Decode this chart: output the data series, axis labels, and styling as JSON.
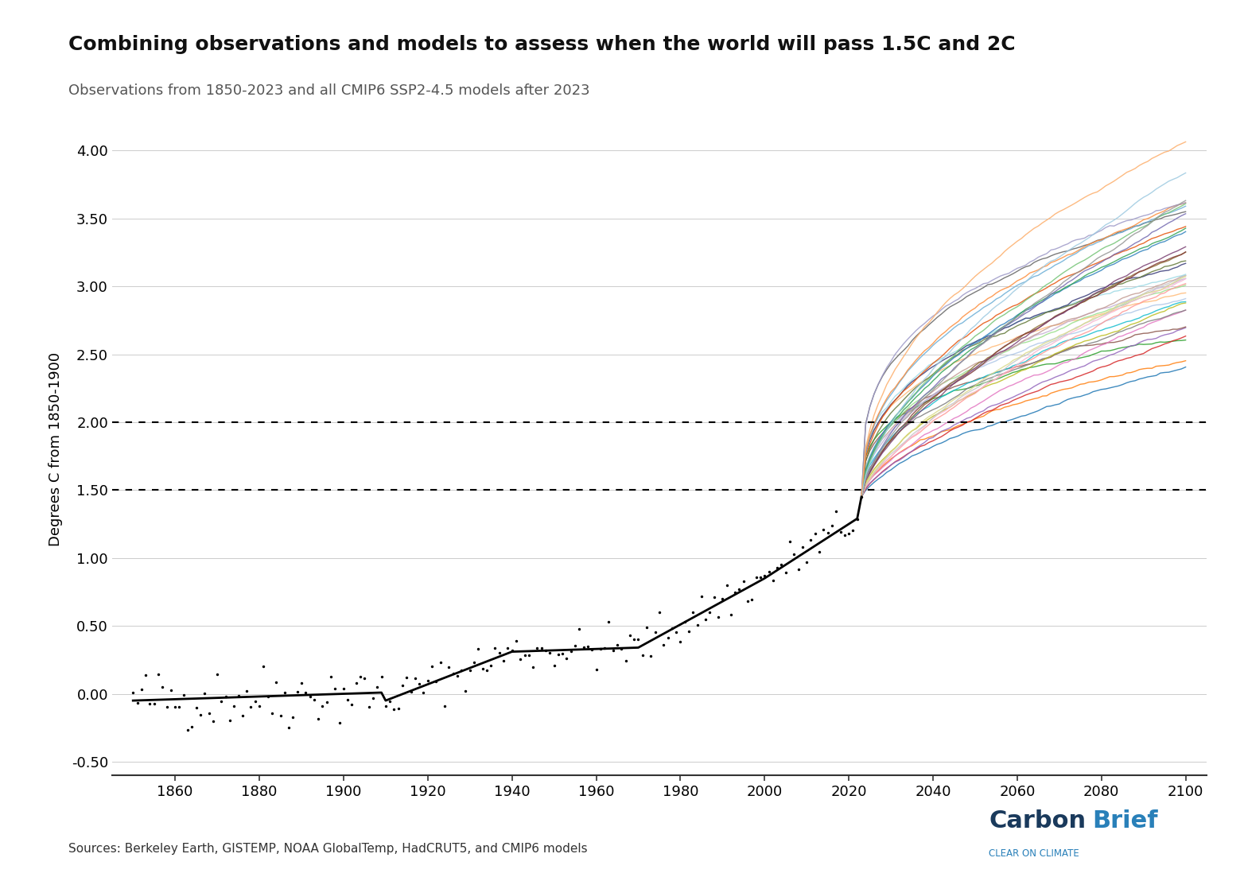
{
  "title": "Combining observations and models to assess when the world will pass 1.5C and 2C",
  "subtitle": "Observations from 1850-2023 and all CMIP6 SSP2-4.5 models after 2023",
  "ylabel": "Degrees C from 1850-1900",
  "sources": "Sources: Berkeley Earth, GISTEMP, NOAA GlobalTemp, HadCRUT5, and CMIP6 models",
  "threshold_1p5": 1.5,
  "threshold_2p0": 2.0,
  "xlim": [
    1845,
    2105
  ],
  "ylim": [
    -0.6,
    4.2
  ],
  "yticks": [
    -0.5,
    0.0,
    0.5,
    1.0,
    1.5,
    2.0,
    2.5,
    3.0,
    3.5,
    4.0
  ],
  "xticks": [
    1860,
    1880,
    1900,
    1920,
    1940,
    1960,
    1980,
    2000,
    2020,
    2040,
    2060,
    2080,
    2100
  ],
  "obs_color": "black",
  "lowess_color": "black",
  "background_color": "#ffffff",
  "model_colors": [
    "#1f77b4",
    "#ff7f0e",
    "#2ca02c",
    "#d62728",
    "#9467bd",
    "#8c564b",
    "#e377c2",
    "#7f7f7f",
    "#bcbd22",
    "#17becf",
    "#aec7e8",
    "#ffbb78",
    "#98df8a",
    "#ff9896",
    "#c5b0d5",
    "#c49c94",
    "#f7b6d2",
    "#c7c7c7",
    "#dbdb8d",
    "#9edae5",
    "#393b79",
    "#637939",
    "#8c6d31",
    "#843c39",
    "#7b4173",
    "#3182bd",
    "#e6550d",
    "#31a354",
    "#756bb1",
    "#636363",
    "#6baed6",
    "#fd8d3c",
    "#74c476",
    "#9e9ac8",
    "#969696",
    "#9ecae1",
    "#fdae6b"
  ],
  "carbonbrief_dark": "#1a3a5c",
  "carbonbrief_light": "#2980b9"
}
